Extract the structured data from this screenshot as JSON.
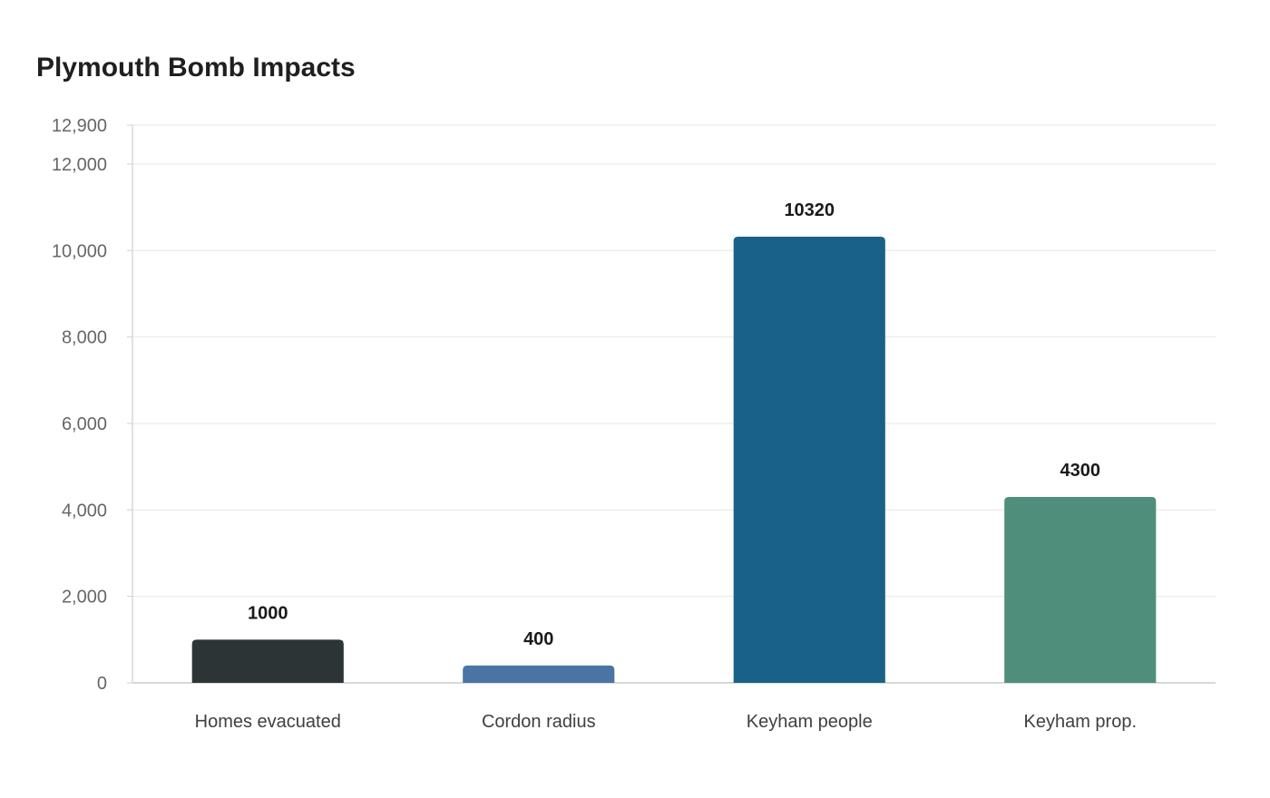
{
  "chart_data": {
    "type": "bar",
    "title": "Plymouth Bomb Impacts",
    "xlabel": "",
    "ylabel": "",
    "categories": [
      "Homes evacuated",
      "Cordon radius",
      "Keyham people",
      "Keyham prop."
    ],
    "values": [
      1000,
      400,
      10320,
      4300
    ],
    "data_labels": [
      "1000",
      "400",
      "10320",
      "4300"
    ],
    "colors": [
      "#2d3436",
      "#4a74a4",
      "#196189",
      "#4e8e7b"
    ],
    "ylim": [
      0,
      12900
    ],
    "y_ticks": [
      0,
      2000,
      4000,
      6000,
      8000,
      10000,
      12000,
      12900
    ],
    "y_tick_labels": [
      "0",
      "2,000",
      "4,000",
      "6,000",
      "8,000",
      "10,000",
      "12,000",
      "12,900"
    ],
    "grid": true,
    "legend": "none"
  }
}
